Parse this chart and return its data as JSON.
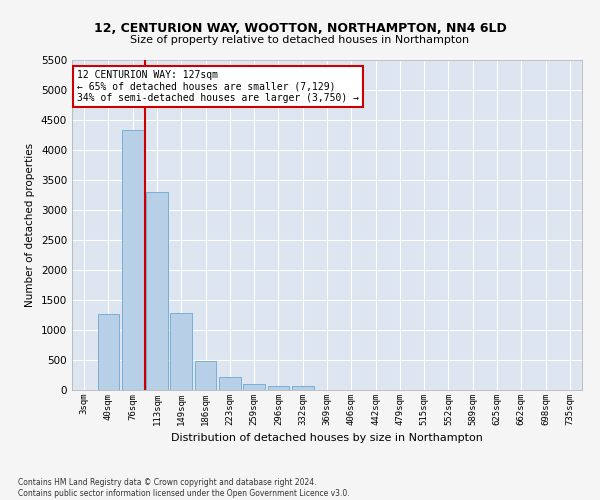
{
  "title1": "12, CENTURION WAY, WOOTTON, NORTHAMPTON, NN4 6LD",
  "title2": "Size of property relative to detached houses in Northampton",
  "xlabel": "Distribution of detached houses by size in Northampton",
  "ylabel": "Number of detached properties",
  "bar_color": "#b8cfe8",
  "bar_edge_color": "#7aaed4",
  "background_color": "#dde6f0",
  "grid_color": "#ffffff",
  "categories": [
    "3sqm",
    "40sqm",
    "76sqm",
    "113sqm",
    "149sqm",
    "186sqm",
    "223sqm",
    "259sqm",
    "296sqm",
    "332sqm",
    "369sqm",
    "406sqm",
    "442sqm",
    "479sqm",
    "515sqm",
    "552sqm",
    "589sqm",
    "625sqm",
    "662sqm",
    "698sqm",
    "735sqm"
  ],
  "values": [
    0,
    1270,
    4330,
    3300,
    1280,
    490,
    220,
    100,
    60,
    60,
    0,
    0,
    0,
    0,
    0,
    0,
    0,
    0,
    0,
    0,
    0
  ],
  "vline_color": "#cc0000",
  "vline_x_index": 3,
  "ylim": [
    0,
    5500
  ],
  "yticks": [
    0,
    500,
    1000,
    1500,
    2000,
    2500,
    3000,
    3500,
    4000,
    4500,
    5000,
    5500
  ],
  "annotation_line1": "12 CENTURION WAY: 127sqm",
  "annotation_line2": "← 65% of detached houses are smaller (7,129)",
  "annotation_line3": "34% of semi-detached houses are larger (3,750) →",
  "annotation_box_color": "#ffffff",
  "annotation_border_color": "#cc0000",
  "footer1": "Contains HM Land Registry data © Crown copyright and database right 2024.",
  "footer2": "Contains public sector information licensed under the Open Government Licence v3.0."
}
